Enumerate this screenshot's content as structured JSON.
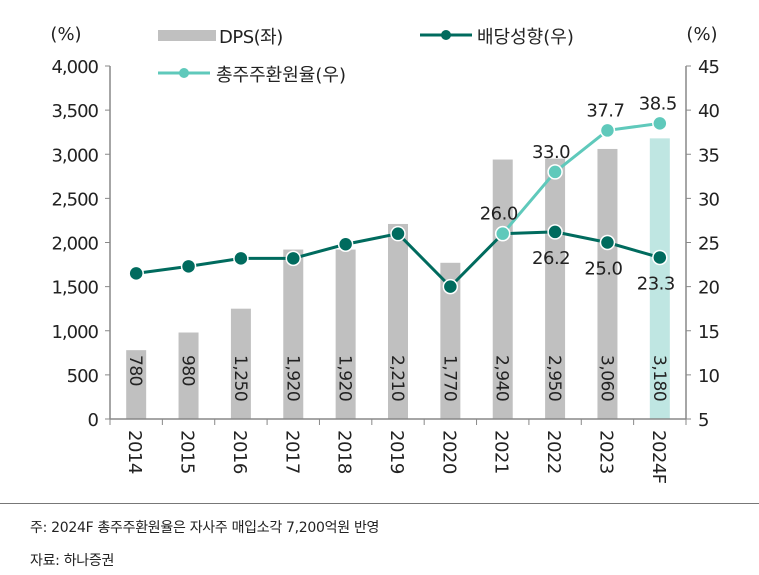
{
  "chart_data": {
    "type": "bar+line",
    "categories": [
      "2014",
      "2015",
      "2016",
      "2017",
      "2018",
      "2019",
      "2020",
      "2021",
      "2022",
      "2023",
      "2024F"
    ],
    "left_axis": {
      "unit": "(%)",
      "ylim": [
        0,
        4000
      ],
      "ticks": [
        "0",
        "500",
        "1,000",
        "1,500",
        "2,000",
        "2,500",
        "3,000",
        "3,500",
        "4,000"
      ]
    },
    "right_axis": {
      "unit": "(%)",
      "ylim": [
        5,
        45
      ],
      "ticks": [
        "5",
        "10",
        "15",
        "20",
        "25",
        "30",
        "35",
        "40",
        "45"
      ]
    },
    "series": [
      {
        "name": "DPS(좌)",
        "type": "bar",
        "axis": "left",
        "color": "#c0c0c0",
        "highlight_color": "#bfe6e2",
        "values": [
          780,
          980,
          1250,
          1920,
          1920,
          2210,
          1770,
          2940,
          2950,
          3060,
          3180
        ],
        "labels": [
          "780",
          "980",
          "1,250",
          "1,920",
          "1,920",
          "2,210",
          "1,770",
          "2,940",
          "2,950",
          "3,060",
          "3,180"
        ]
      },
      {
        "name": "배당성향(우)",
        "type": "line",
        "axis": "right",
        "color": "#006b5e",
        "values": [
          21.5,
          22.3,
          23.2,
          23.2,
          24.8,
          26.0,
          20.0,
          26.0,
          26.2,
          25.0,
          23.3
        ],
        "labels": [
          null,
          null,
          null,
          null,
          null,
          null,
          null,
          null,
          "26.2",
          "25.0",
          "23.3"
        ]
      },
      {
        "name": "총주주환원율(우)",
        "type": "line",
        "axis": "right",
        "color": "#5fc9bb",
        "values": [
          null,
          null,
          null,
          null,
          null,
          null,
          null,
          26.0,
          33.0,
          37.7,
          38.5
        ],
        "labels": [
          null,
          null,
          null,
          null,
          null,
          null,
          null,
          "26.0",
          "33.0",
          "37.7",
          "38.5"
        ]
      }
    ],
    "legend": "top"
  },
  "notes": {
    "footnote": "주: 2024F 총주주환원율은 자사주 매입소각 7,200억원 반영",
    "source": "자료: 하나증권"
  }
}
